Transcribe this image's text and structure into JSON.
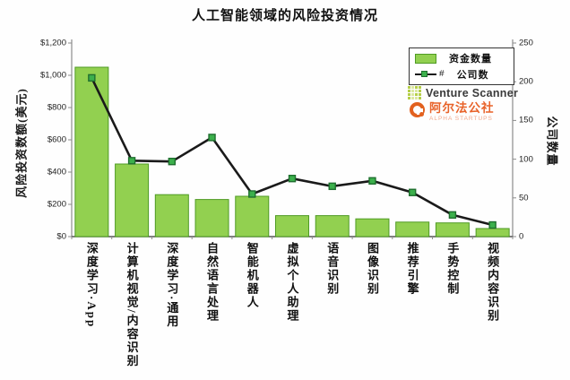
{
  "title": "人工智能领域的风险投资情况",
  "chart_data": {
    "type": "bar",
    "subtype": "bar-plus-line-combo",
    "categories": [
      "深度学习·App",
      "计算机视觉/内容识别",
      "深度学习·通用",
      "自然语言处理",
      "智能机器人",
      "虚拟个人助理",
      "语音识别",
      "图像识别",
      "推荐引擎",
      "手势控制",
      "视频内容识别"
    ],
    "series": [
      {
        "name": "资金数量",
        "type": "bar",
        "axis": "left",
        "values": [
          1050,
          450,
          260,
          230,
          250,
          130,
          130,
          110,
          90,
          85,
          50
        ]
      },
      {
        "name": "公司数",
        "type": "line",
        "axis": "right",
        "values": [
          205,
          98,
          97,
          128,
          55,
          75,
          65,
          72,
          57,
          28,
          15
        ]
      }
    ],
    "left_axis": {
      "label": "风险投资数额(美元)",
      "ticks": [
        "$1,200",
        "$1,000",
        "$800",
        "$600",
        "$400",
        "$200",
        "$0"
      ],
      "min": 0,
      "max": 1200
    },
    "right_axis": {
      "label": "公司数量",
      "ticks": [
        "250",
        "200",
        "150",
        "100",
        "50",
        "0"
      ],
      "min": 0,
      "max": 250
    },
    "legend": {
      "position": "top-right-inside",
      "items": [
        {
          "label": "资金数量",
          "marker": "bar-swatch"
        },
        {
          "label": "公司数",
          "marker": "line-marker",
          "marker_suffix": "#"
        }
      ]
    },
    "grid": "off"
  },
  "branding": {
    "venture_scanner": "Venture Scanner",
    "alpha_name": "阿尔法公社",
    "alpha_sub": "ALPHA STARTUPS"
  },
  "colors": {
    "bar_fill": "#92d050",
    "bar_border": "#4f9b24",
    "line": "#1a1a1a",
    "marker_fill": "#3cb04c",
    "marker_border": "#1f6f2f",
    "axis_line": "#8c8c8c",
    "alpha_orange": "#e8632a",
    "vs_green": "#b5cf49",
    "vs_green_light": "#dce8a0"
  }
}
